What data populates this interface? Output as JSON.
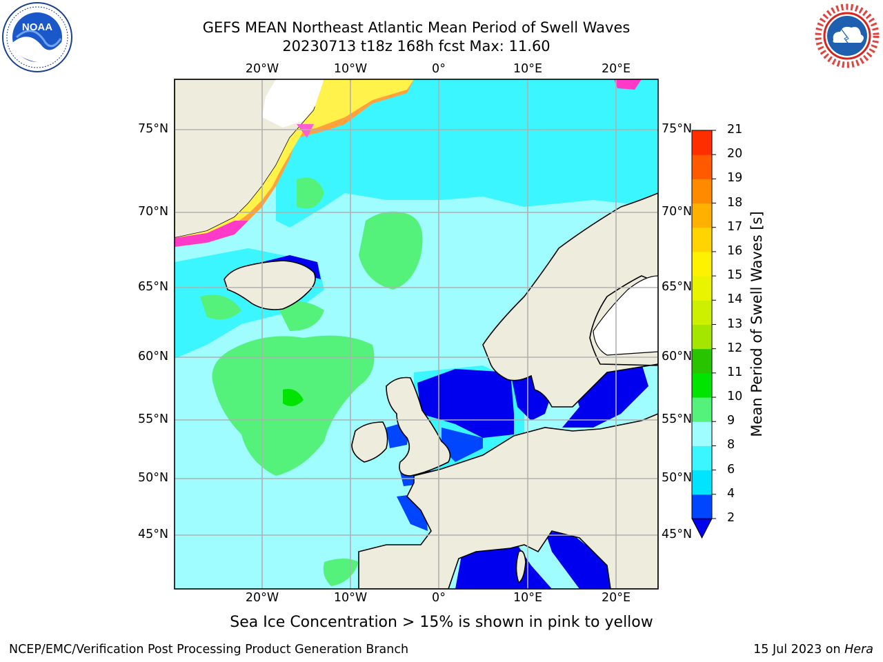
{
  "header": {
    "title_line1": "GEFS MEAN Northeast Atlantic Mean Period of Swell Waves",
    "title_line2": "20230713 t18z 168h fcst   Max: 11.60"
  },
  "logos": {
    "left": {
      "name": "NOAA",
      "ring_text": "NATIONAL OCEANIC AND ATMOSPHERIC ADMINISTRATION · U.S. DEPARTMENT OF COMMERCE"
    },
    "right": {
      "ring_text": "NATIONAL WEATHER SERVICE"
    }
  },
  "map": {
    "lon_labels": [
      "20°W",
      "10°W",
      "0°",
      "10°E",
      "20°E"
    ],
    "lat_labels": [
      "75°N",
      "70°N",
      "65°N",
      "60°N",
      "55°N",
      "50°N",
      "45°N"
    ],
    "extent": {
      "lon_min": -30,
      "lon_max": 25,
      "lat_min": 41,
      "lat_max": 78
    }
  },
  "colorbar": {
    "title": "Mean Period of Swell Waves [s]",
    "ticks": [
      "2",
      "4",
      "6",
      "8",
      "9",
      "10",
      "11",
      "12",
      "13",
      "14",
      "15",
      "16",
      "17",
      "18",
      "19",
      "20",
      "21"
    ],
    "colors": [
      "#0046ff",
      "#00e4ff",
      "#3cf6ff",
      "#9ffcff",
      "#54f27a",
      "#00e400",
      "#29c400",
      "#a4e600",
      "#cdf000",
      "#e9f500",
      "#fff200",
      "#ffd400",
      "#ffb000",
      "#ff8a00",
      "#ff5a00",
      "#ff2e00",
      "#ff0000"
    ],
    "extend_color": "#0000ee"
  },
  "caption": "Sea Ice Concentration > 15% is shown in pink to yellow",
  "footer": {
    "left": "NCEP/EMC/Verification Post Processing Product Generation Branch",
    "date": "15 Jul 2023 on ",
    "machine": "Hera"
  }
}
